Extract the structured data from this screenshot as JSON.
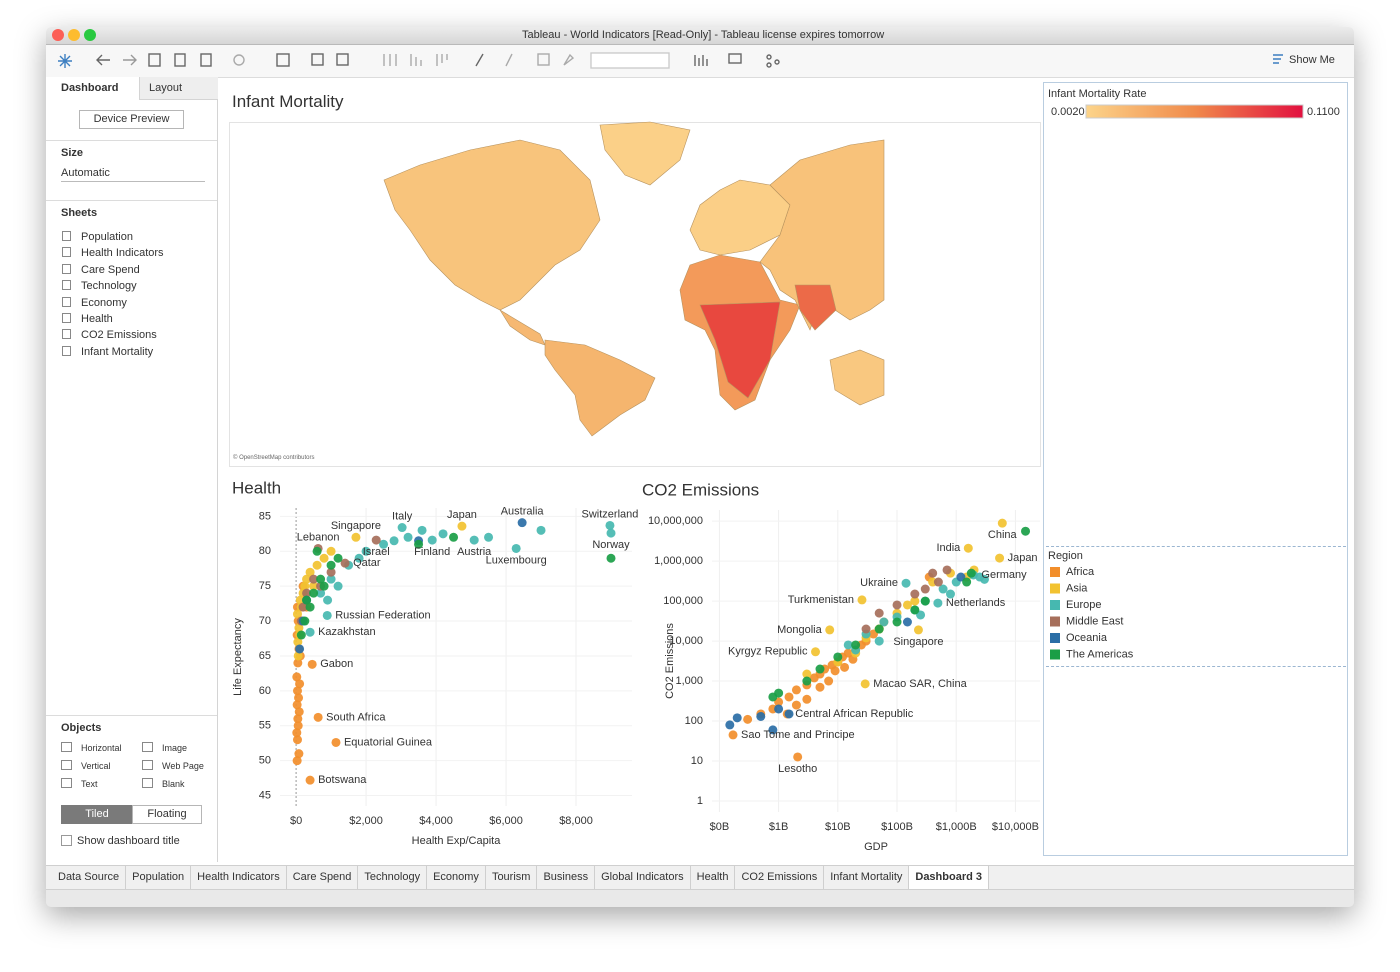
{
  "window": {
    "title": "Tableau - World Indicators [Read-Only] - Tableau license expires tomorrow"
  },
  "toolbar": {
    "show_me": "Show Me"
  },
  "sidebar": {
    "tabs": [
      "Dashboard",
      "Layout"
    ],
    "device_preview": "Device Preview",
    "size_heading": "Size",
    "size_value": "Automatic",
    "sheets_heading": "Sheets",
    "sheets": [
      "Population",
      "Health Indicators",
      "Care Spend",
      "Technology",
      "Economy",
      "Health",
      "CO2 Emissions",
      "Infant Mortality"
    ],
    "objects_heading": "Objects",
    "objects": [
      "Horizontal",
      "Image",
      "Vertical",
      "Web Page",
      "Text",
      "Blank"
    ],
    "layout_modes": [
      "Tiled",
      "Floating"
    ],
    "show_title": "Show dashboard title"
  },
  "dashboard": {
    "title": "Infant Mortality",
    "map": {
      "attribution": "© OpenStreetMap contributors"
    }
  },
  "chart_data": [
    {
      "type": "scatter",
      "title": "Health",
      "xlabel": "Health Exp/Capita",
      "ylabel": "Life Expectancy",
      "xlim": [
        -460,
        9600
      ],
      "ylim": [
        43.5,
        86.2
      ],
      "grid": true,
      "xlog": false,
      "ylog": false,
      "xticks": [
        {
          "value": 0,
          "label": "$0"
        },
        {
          "value": 2000,
          "label": "$2,000"
        },
        {
          "value": 4000,
          "label": "$4,000"
        },
        {
          "value": 6000,
          "label": "$6,000"
        },
        {
          "value": 8000,
          "label": "$8,000"
        }
      ],
      "yticks": [
        45,
        50,
        55,
        60,
        65,
        70,
        75,
        80,
        85
      ],
      "series": [
        {
          "name": "Africa",
          "color": "#f28e2b",
          "x": [
            460,
            630,
            1140,
            400,
            40,
            60,
            30,
            80,
            50,
            20,
            100,
            40,
            70,
            30,
            90,
            50,
            60,
            20,
            40,
            80,
            30,
            120,
            150,
            200,
            300
          ],
          "y": [
            63.8,
            56.2,
            52.6,
            47.2,
            72,
            70,
            68,
            66,
            64,
            62,
            61,
            60,
            59,
            58,
            57,
            56,
            55,
            54,
            53,
            51,
            50,
            65,
            70,
            75,
            72
          ],
          "labels": [
            "Gabon",
            "South Africa",
            "Equatorial Guinea",
            "Botswana",
            null,
            null,
            null,
            null,
            null,
            null,
            null,
            null,
            null,
            null,
            null,
            null,
            null,
            null,
            null,
            null,
            null,
            null,
            null,
            null,
            null
          ]
        },
        {
          "name": "Asia",
          "color": "#f2c230",
          "x": [
            1710,
            4740,
            50,
            80,
            40,
            120,
            200,
            300,
            150,
            100,
            60,
            250,
            400,
            600,
            800,
            1000,
            180,
            500
          ],
          "y": [
            82,
            83.6,
            67,
            69,
            71,
            73,
            74,
            76,
            72,
            68,
            65,
            75,
            77,
            78,
            79,
            80,
            70,
            75
          ],
          "labels": [
            "Singapore",
            "Japan",
            null,
            null,
            null,
            null,
            null,
            null,
            null,
            null,
            null,
            null,
            null,
            null,
            null,
            null,
            null,
            null
          ]
        },
        {
          "name": "Europe",
          "color": "#46b8b0",
          "x": [
            3030,
            8970,
            9000,
            3890,
            5090,
            6290,
            890,
            400,
            1000,
            1500,
            2000,
            2500,
            3200,
            3600,
            4200,
            5500,
            7000,
            1200,
            700,
            900,
            1800,
            2800
          ],
          "y": [
            83.4,
            83.7,
            82.6,
            81.6,
            81.6,
            80.4,
            70.8,
            68.4,
            76,
            78,
            80,
            81,
            82,
            83,
            82.5,
            82,
            83,
            75,
            74,
            73,
            79,
            81.5
          ],
          "labels": [
            "Italy",
            "Switzerland",
            "Norway",
            "Finland",
            "Austria",
            "Luxembourg",
            "Russian Federation",
            "Kazakhstan",
            null,
            null,
            null,
            null,
            null,
            null,
            null,
            null,
            null,
            null,
            null,
            null,
            null,
            null
          ]
        },
        {
          "name": "Middle East",
          "color": "#a66f5b",
          "x": [
            630,
            2290,
            1400,
            300,
            500,
            200,
            700,
            1000,
            150
          ],
          "y": [
            80.4,
            81.6,
            78.3,
            74,
            76,
            72,
            75,
            77,
            70
          ],
          "labels": [
            "Lebanon",
            "Israel",
            "Qatar",
            null,
            null,
            null,
            null,
            null,
            null
          ]
        },
        {
          "name": "Oceania",
          "color": "#2a6ea6",
          "x": [
            6460,
            200,
            300,
            3500,
            100
          ],
          "y": [
            84.1,
            70,
            73,
            81.5,
            66
          ],
          "labels": [
            "Australia",
            null,
            null,
            null,
            null
          ]
        },
        {
          "name": "The Americas",
          "color": "#1a9e46",
          "x": [
            9000,
            500,
            700,
            400,
            300,
            1000,
            600,
            3500,
            800,
            250,
            150,
            1200,
            4500
          ],
          "y": [
            79,
            74,
            76,
            72,
            73,
            78,
            80,
            81,
            75,
            70,
            68,
            79,
            82
          ]
        }
      ]
    },
    {
      "type": "scatter",
      "title": "CO2 Emissions",
      "xlabel": "GDP",
      "ylabel": "CO2 Emissions",
      "xlim": [
        0.075,
        26000
      ],
      "ylim": [
        0.53,
        19000000
      ],
      "grid": true,
      "xlog": true,
      "ylog": true,
      "xticks": [
        {
          "value": 0.1,
          "label": "$0B"
        },
        {
          "value": 1,
          "label": "$1B"
        },
        {
          "value": 10,
          "label": "$10B"
        },
        {
          "value": 100,
          "label": "$100B"
        },
        {
          "value": 1000,
          "label": "$1,000B"
        },
        {
          "value": 10000,
          "label": "$10,000B"
        }
      ],
      "yticks": [
        1,
        10,
        100,
        {
          "value": 1000,
          "label": "1,000"
        },
        {
          "value": 10000,
          "label": "10,000"
        },
        {
          "value": 100000,
          "label": "100,000"
        },
        {
          "value": 1000000,
          "label": "1,000,000"
        },
        {
          "value": 10000000,
          "label": "10,000,000"
        }
      ],
      "series": [
        {
          "name": "Africa",
          "color": "#f28e2b",
          "x": [
            1.4,
            0.17,
            2.1,
            0.3,
            0.5,
            0.8,
            1,
            1.5,
            2,
            3,
            4,
            5,
            6,
            8,
            10,
            12,
            15,
            20,
            25,
            30,
            40,
            50,
            60,
            2,
            3,
            5,
            7,
            9,
            13,
            18,
            350
          ],
          "y": [
            150,
            45,
            12.6,
            110,
            150,
            200,
            300,
            400,
            600,
            800,
            1200,
            1500,
            2000,
            2500,
            3000,
            4000,
            5000,
            6000,
            8000,
            10000,
            15000,
            20000,
            30000,
            250,
            350,
            700,
            1000,
            1800,
            2200,
            3500,
            400000
          ],
          "labels": [
            "Central African Republic",
            "Sao Tome and Principe",
            "Lesotho",
            null,
            null,
            null,
            null,
            null,
            null,
            null,
            null,
            null,
            null,
            null,
            null,
            null,
            null,
            null,
            null,
            null,
            null,
            null,
            null,
            null,
            null,
            null,
            null,
            null,
            null,
            null,
            null
          ]
        },
        {
          "name": "Asia",
          "color": "#f2c230",
          "x": [
            6000,
            1600,
            5400,
            25.6,
            7.3,
            4.2,
            230,
            29,
            10,
            20,
            50,
            100,
            200,
            400,
            800,
            1500,
            3,
            30,
            150,
            2000
          ],
          "y": [
            8900000,
            2100000,
            1190000,
            107000,
            19000,
            5400,
            19000,
            850,
            3000,
            5000,
            20000,
            50000,
            100000,
            300000,
            500000,
            400000,
            1500,
            12000,
            80000,
            600000
          ],
          "labels": [
            "China",
            "India",
            "Japan",
            "Turkmenistan",
            "Mongolia",
            "Kyrgyz Republic",
            "Singapore",
            "Macao SAR, China",
            null,
            null,
            null,
            null,
            null,
            null,
            null,
            null,
            null,
            null,
            null,
            null
          ]
        },
        {
          "name": "Europe",
          "color": "#46b8b0",
          "x": [
            142,
            1950,
            490,
            15,
            30,
            60,
            100,
            200,
            300,
            600,
            1000,
            2500,
            3000,
            50,
            20,
            250,
            800
          ],
          "y": [
            280000,
            450000,
            89000,
            8000,
            15000,
            30000,
            40000,
            60000,
            100000,
            200000,
            300000,
            400000,
            350000,
            10000,
            6000,
            45000,
            150000
          ],
          "labels": [
            "Ukraine",
            "Germany",
            "Netherlands",
            null,
            null,
            null,
            null,
            null,
            null,
            null,
            null,
            null,
            null,
            null,
            null,
            null,
            null
          ]
        },
        {
          "name": "Middle East",
          "color": "#a66f5b",
          "x": [
            400,
            700,
            300,
            100,
            50,
            200,
            30,
            500
          ],
          "y": [
            500000,
            600000,
            200000,
            80000,
            50000,
            150000,
            20000,
            300000
          ]
        },
        {
          "name": "Oceania",
          "color": "#2a6ea6",
          "x": [
            0.15,
            0.2,
            0.5,
            1,
            1.5,
            1200,
            150,
            0.8
          ],
          "y": [
            80,
            120,
            130,
            200,
            150,
            400000,
            30000,
            60
          ]
        },
        {
          "name": "The Americas",
          "color": "#1a9e46",
          "x": [
            14800,
            1800,
            1500,
            300,
            200,
            50,
            20,
            10,
            5,
            3,
            100,
            0.8,
            1
          ],
          "y": [
            5600000,
            500000,
            300000,
            100000,
            60000,
            20000,
            8000,
            4000,
            2000,
            1000,
            30000,
            400,
            500
          ]
        }
      ]
    }
  ],
  "legends": {
    "mortality": {
      "title": "Infant Mortality Rate",
      "min": {
        "value": 0.002,
        "label": "0.0020"
      },
      "max": {
        "value": 0.11,
        "label": "0.1100"
      },
      "colors": [
        "#fcd48a",
        "#f08a4b",
        "#e2103f"
      ]
    },
    "region": {
      "title": "Region"
    }
  },
  "tabs": [
    "Data Source",
    "Population",
    "Health Indicators",
    "Care Spend",
    "Technology",
    "Economy",
    "Tourism",
    "Business",
    "Global Indicators",
    "Health",
    "CO2 Emissions",
    "Infant Mortality",
    "Dashboard 3"
  ]
}
